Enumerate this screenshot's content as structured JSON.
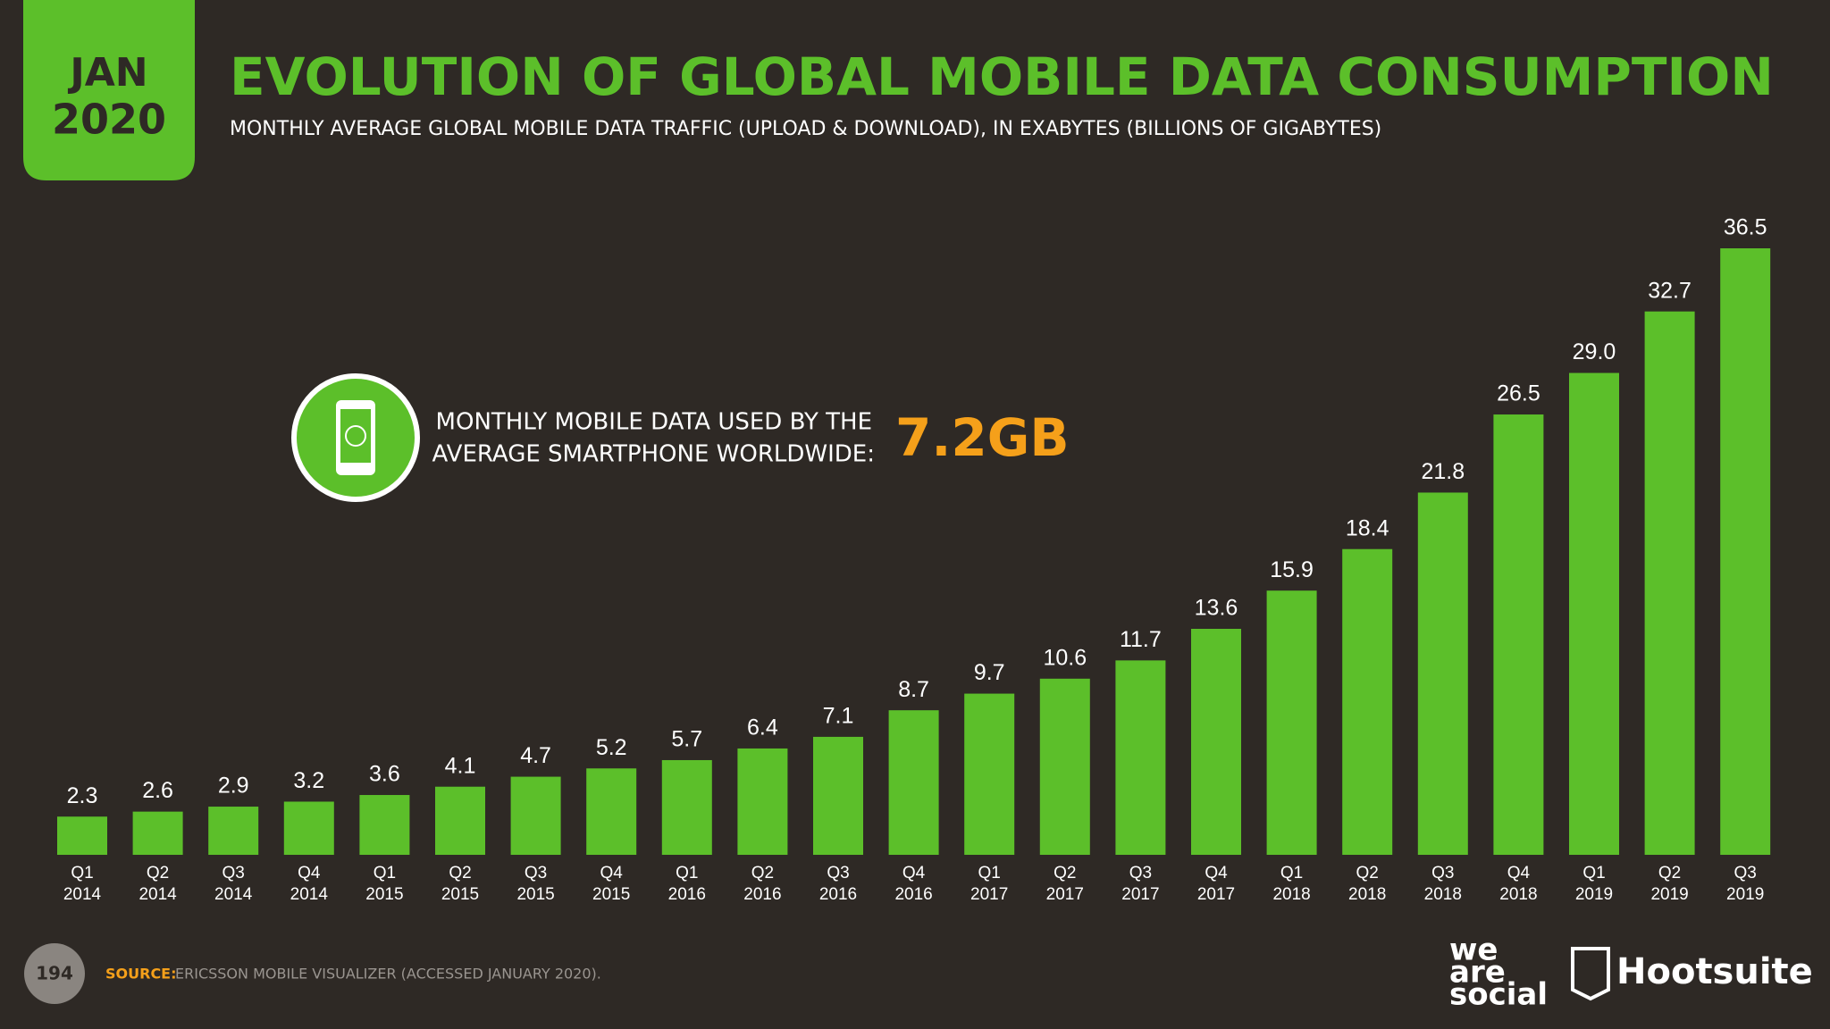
{
  "badge": {
    "month": "JAN",
    "year": "2020"
  },
  "callout": {
    "lines": [
      "MONTHLY MOBILE DATA USED BY THE",
      "AVERAGE SMARTPHONE WORLDWIDE:"
    ],
    "value": "7.2GB"
  },
  "footer": {
    "page": "194",
    "source_label": "SOURCE:",
    "source": "ERICSSON MOBILE VISUALIZER (ACCESSED JANUARY 2020)."
  },
  "logos": {
    "we_are_social": [
      "we",
      "are",
      "social"
    ],
    "hootsuite": "Hootsuite"
  },
  "chart_data": {
    "type": "bar",
    "title": "EVOLUTION OF GLOBAL MOBILE DATA CONSUMPTION",
    "subtitle": "MONTHLY AVERAGE GLOBAL MOBILE DATA TRAFFIC (UPLOAD & DOWNLOAD), IN EXABYTES (BILLIONS OF GIGABYTES)",
    "categories": [
      "Q1 2014",
      "Q2 2014",
      "Q3 2014",
      "Q4 2014",
      "Q1 2015",
      "Q2 2015",
      "Q3 2015",
      "Q4 2015",
      "Q1 2016",
      "Q2 2016",
      "Q3 2016",
      "Q4 2016",
      "Q1 2017",
      "Q2 2017",
      "Q3 2017",
      "Q4 2017",
      "Q1 2018",
      "Q2 2018",
      "Q3 2018",
      "Q4 2018",
      "Q1 2019",
      "Q2 2019",
      "Q3 2019"
    ],
    "values": [
      2.3,
      2.6,
      2.9,
      3.2,
      3.6,
      4.1,
      4.7,
      5.2,
      5.7,
      6.4,
      7.1,
      8.7,
      9.7,
      10.6,
      11.7,
      13.6,
      15.9,
      18.4,
      21.8,
      26.5,
      29,
      32.7,
      36.5
    ],
    "value_labels": [
      "2.3",
      "2.6",
      "2.9",
      "3.2",
      "3.6",
      "4.1",
      "4.7",
      "5.2",
      "5.7",
      "6.4",
      "7.1",
      "8.7",
      "9.7",
      "10.6",
      "11.7",
      "13.6",
      "15.9",
      "18.4",
      "21.8",
      "26.5",
      "29.0",
      "32.7",
      "36.5"
    ],
    "color": "#5cbf2a"
  }
}
